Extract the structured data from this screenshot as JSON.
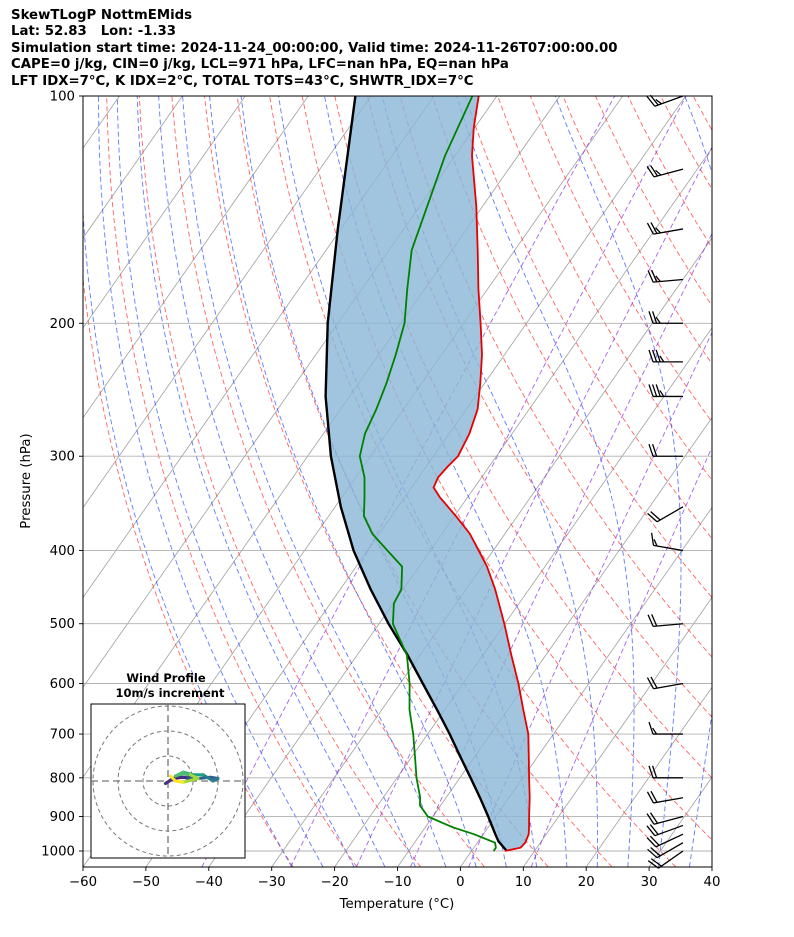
{
  "header": {
    "title": "SkewTLogP NottmEMids",
    "latlon": "Lat: 52.83   Lon: -1.33",
    "times": "Simulation start time: 2024-11-24_00:00:00, Valid time: 2024-11-26T07:00:00.00",
    "cape_line": "CAPE=0 j/kg, CIN=0 j/kg, LCL=971 hPa, LFC=nan hPa, EQ=nan hPa",
    "idx_line": "LFT IDX=7$^\\circ$C, K IDX=2$^\\circ$C, TOTAL TOTS=43$^\\circ$C, SHWTR_IDX=7$^\\circ$C"
  },
  "hodograph": {
    "title": "Wind Profile",
    "subtitle": "10m/s increment"
  },
  "colors": {
    "temperature": "#e60000",
    "dewpoint": "#008000",
    "parcel": "#000000",
    "cape_fill": "#8ab6d6",
    "dry_adiabat": "#ff3030",
    "moist_adiabat": "#2040ff",
    "mixing_ratio": "#8a2be2",
    "isotherm": "#a0a0a0"
  },
  "chart_data": {
    "type": "line",
    "title": "SkewTLogP NottmEMids",
    "xlabel": "Temperature ($^\\circ$C)",
    "ylabel": "Pressure (hPa)",
    "xlim": [
      -60,
      40
    ],
    "ylim": [
      1050,
      100
    ],
    "x_ticks": [
      -60,
      -50,
      -40,
      -30,
      -20,
      -10,
      0,
      10,
      20,
      30,
      40
    ],
    "x_tick_labels": [
      "−60",
      "−50",
      "−40",
      "−30",
      "−20",
      "−10",
      "0",
      "10",
      "20",
      "30",
      "40"
    ],
    "y_ticks": [
      1000,
      900,
      800,
      700,
      600,
      500,
      400,
      300,
      200,
      100
    ],
    "y_tick_labels": [
      "1000",
      "900",
      "800",
      "700",
      "600",
      "500",
      "400",
      "300",
      "200",
      "100"
    ],
    "grid": true,
    "series": [
      {
        "name": "Temperature",
        "p": [
          1000,
          990,
          975,
          950,
          925,
          900,
          850,
          800,
          750,
          700,
          650,
          600,
          550,
          500,
          450,
          420,
          400,
          380,
          360,
          340,
          330,
          320,
          310,
          300,
          280,
          260,
          240,
          220,
          200,
          180,
          160,
          140,
          120,
          110,
          100
        ],
        "values": [
          5.3,
          7.4,
          7.6,
          7.2,
          6.3,
          5.3,
          3.3,
          1.0,
          -1.4,
          -4.0,
          -7.5,
          -11.2,
          -15.5,
          -20.1,
          -25.4,
          -29.2,
          -32.3,
          -35.6,
          -39.8,
          -44.4,
          -46.5,
          -46.9,
          -46.6,
          -46.1,
          -46.8,
          -48.2,
          -50.7,
          -53.6,
          -57.3,
          -61.5,
          -65.9,
          -71.0,
          -77.3,
          -80.2,
          -82.9
        ]
      },
      {
        "name": "Dewpoint",
        "p": [
          1000,
          990,
          975,
          950,
          930,
          900,
          870,
          850,
          800,
          750,
          700,
          650,
          600,
          550,
          500,
          470,
          450,
          420,
          400,
          380,
          360,
          340,
          320,
          300,
          280,
          260,
          240,
          220,
          200,
          180,
          160,
          140,
          120,
          100
        ],
        "values": [
          3.5,
          3.5,
          2.8,
          -1.5,
          -5.7,
          -10.8,
          -13.3,
          -14.1,
          -16.9,
          -19.5,
          -22.3,
          -25.6,
          -28.5,
          -32.1,
          -37.8,
          -39.9,
          -40.3,
          -42.7,
          -46.8,
          -51.1,
          -54.4,
          -56.4,
          -58.6,
          -61.7,
          -63.4,
          -64.3,
          -65.6,
          -67.3,
          -69.4,
          -72.8,
          -76.4,
          -78.8,
          -81.6,
          -83.9
        ]
      },
      {
        "name": "Parcel",
        "p": [
          1000,
          971,
          950,
          900,
          850,
          800,
          750,
          700,
          650,
          600,
          550,
          500,
          450,
          400,
          350,
          300,
          250,
          200,
          150,
          100
        ],
        "values": [
          5.6,
          3.2,
          1.9,
          -1.2,
          -4.6,
          -8.3,
          -12.3,
          -16.5,
          -21.2,
          -26.4,
          -32.0,
          -38.5,
          -45.2,
          -52.2,
          -59.1,
          -66.3,
          -73.8,
          -81.6,
          -90.5,
          -102.5
        ]
      }
    ],
    "wind_barbs": {
      "p": [
        1000,
        975,
        950,
        925,
        900,
        850,
        800,
        700,
        600,
        500,
        400,
        350,
        300,
        250,
        225,
        200,
        175,
        150,
        125,
        100
      ],
      "speed_kt": [
        20,
        20,
        20,
        20,
        20,
        20,
        20,
        15,
        20,
        20,
        15,
        20,
        20,
        35,
        35,
        25,
        25,
        25,
        25,
        25
      ],
      "from_deg": [
        235,
        240,
        245,
        250,
        255,
        260,
        270,
        270,
        260,
        265,
        280,
        240,
        270,
        270,
        270,
        270,
        265,
        260,
        255,
        250
      ]
    },
    "hodograph": {
      "ring_step_ms": 10,
      "u_ms": [
        9.0,
        6.0,
        2.0,
        -1.0,
        3.0,
        8.0,
        12.0,
        17.0,
        20.0,
        18.0,
        14.0,
        10.0,
        6.0,
        3.0,
        6.0,
        9.0,
        12.0,
        6.0,
        3.0,
        1.0
      ],
      "v_ms": [
        1.0,
        1.5,
        1.0,
        -1.0,
        1.5,
        1.5,
        1.0,
        1.5,
        1.0,
        0.0,
        2.5,
        2.5,
        3.5,
        2.0,
        3.0,
        2.5,
        1.0,
        -0.5,
        0.0,
        2.0
      ]
    }
  }
}
